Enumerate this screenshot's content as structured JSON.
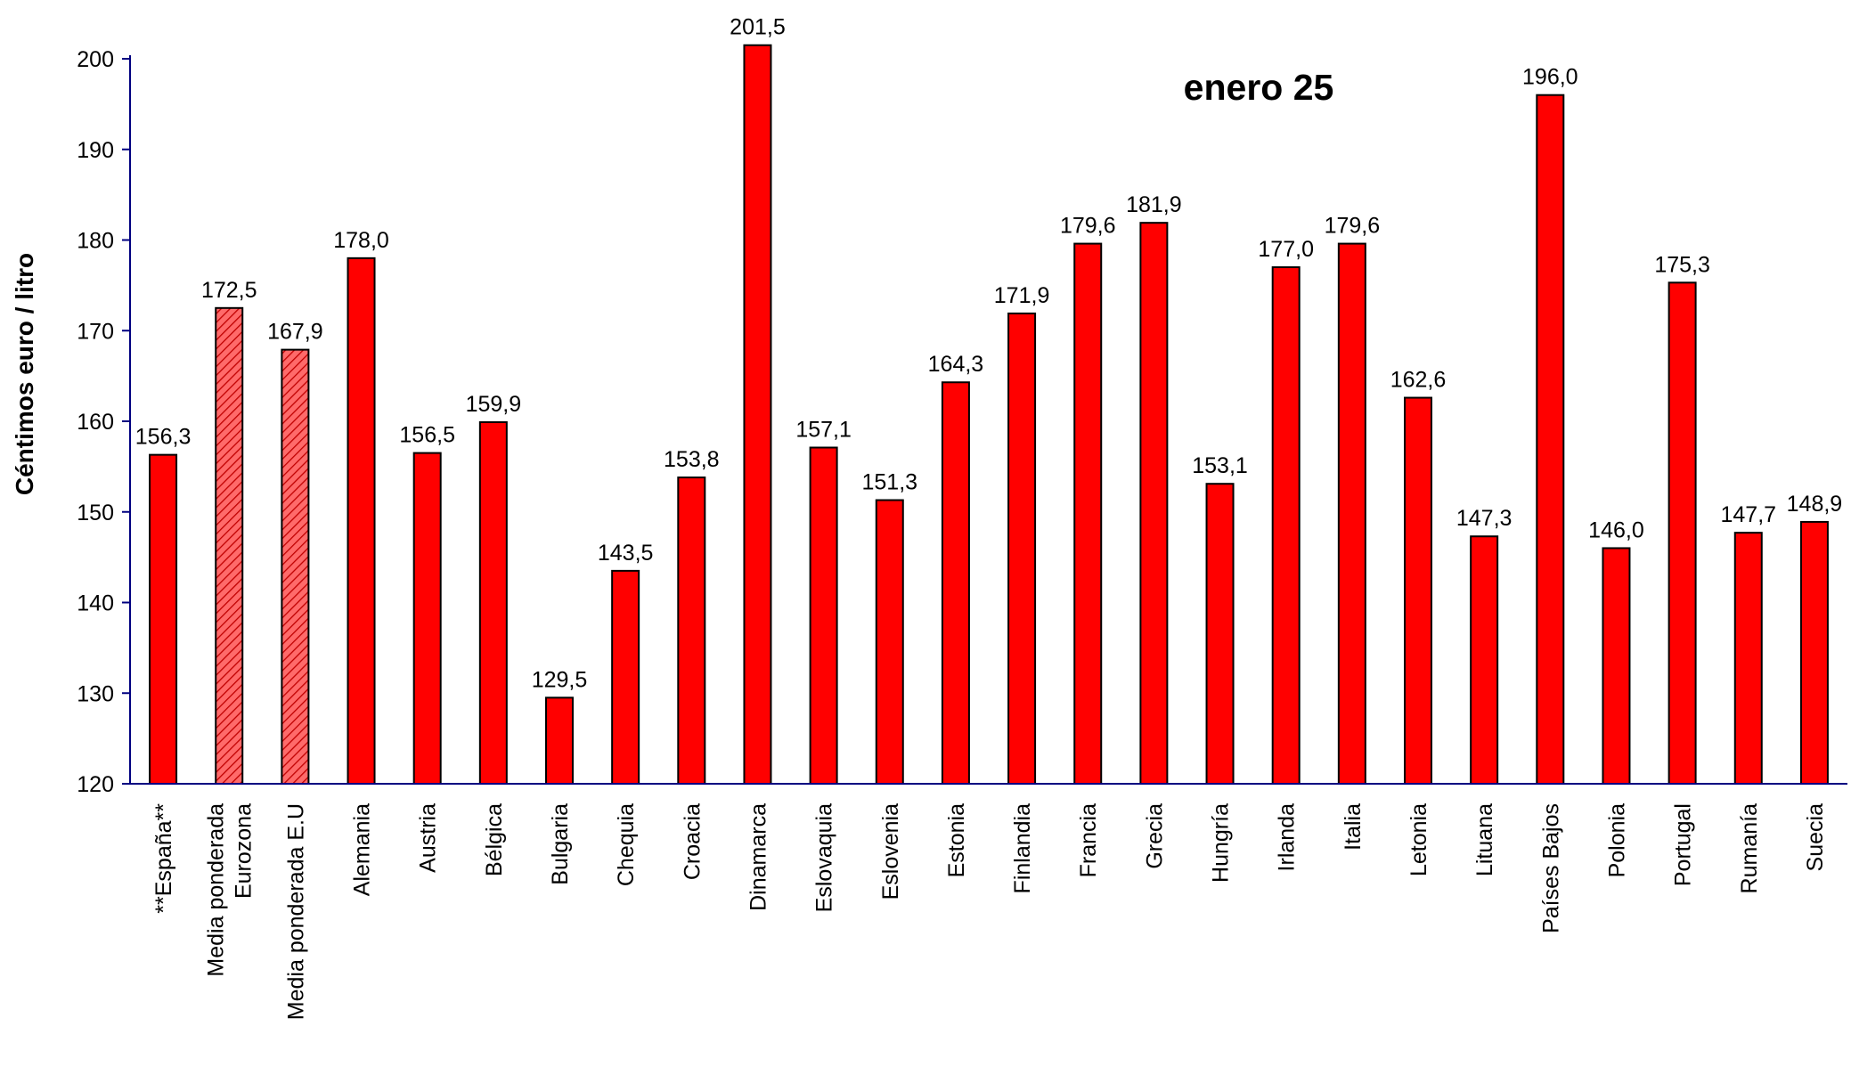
{
  "chart_data": {
    "type": "bar",
    "title": "enero 25",
    "ylabel": "Céntimos euro / litro",
    "xlabel": "",
    "ylim": [
      120,
      200
    ],
    "yticks": [
      120,
      130,
      140,
      150,
      160,
      170,
      180,
      190,
      200
    ],
    "grid": false,
    "legend": "none",
    "colors": {
      "bar_fill": "#ff0000",
      "bar_stroke": "#000000",
      "hatched_fill": "#ff6a6a",
      "hatch_line": "#c00000",
      "axis": "#000080"
    },
    "bars": [
      {
        "category": [
          "**España**"
        ],
        "value": 156.3,
        "label": "156,3",
        "style": "solid"
      },
      {
        "category": [
          "Media ponderada",
          "Eurozona"
        ],
        "value": 172.5,
        "label": "172,5",
        "style": "hatched"
      },
      {
        "category": [
          "Media ponderada E.U"
        ],
        "value": 167.9,
        "label": "167,9",
        "style": "hatched"
      },
      {
        "category": [
          "Alemania"
        ],
        "value": 178.0,
        "label": "178,0",
        "style": "solid"
      },
      {
        "category": [
          "Austria"
        ],
        "value": 156.5,
        "label": "156,5",
        "style": "solid"
      },
      {
        "category": [
          "Bélgica"
        ],
        "value": 159.9,
        "label": "159,9",
        "style": "solid"
      },
      {
        "category": [
          "Bulgaria"
        ],
        "value": 129.5,
        "label": "129,5",
        "style": "solid"
      },
      {
        "category": [
          "Chequia"
        ],
        "value": 143.5,
        "label": "143,5",
        "style": "solid"
      },
      {
        "category": [
          "Croacia"
        ],
        "value": 153.8,
        "label": "153,8",
        "style": "solid"
      },
      {
        "category": [
          "Dinamarca"
        ],
        "value": 201.5,
        "label": "201,5",
        "style": "solid"
      },
      {
        "category": [
          "Eslovaquia"
        ],
        "value": 157.1,
        "label": "157,1",
        "style": "solid"
      },
      {
        "category": [
          "Eslovenia"
        ],
        "value": 151.3,
        "label": "151,3",
        "style": "solid"
      },
      {
        "category": [
          "Estonia"
        ],
        "value": 164.3,
        "label": "164,3",
        "style": "solid"
      },
      {
        "category": [
          "Finlandia"
        ],
        "value": 171.9,
        "label": "171,9",
        "style": "solid"
      },
      {
        "category": [
          "Francia"
        ],
        "value": 179.6,
        "label": "179,6",
        "style": "solid"
      },
      {
        "category": [
          "Grecia"
        ],
        "value": 181.9,
        "label": "181,9",
        "style": "solid"
      },
      {
        "category": [
          "Hungría"
        ],
        "value": 153.1,
        "label": "153,1",
        "style": "solid"
      },
      {
        "category": [
          "Irlanda"
        ],
        "value": 177.0,
        "label": "177,0",
        "style": "solid"
      },
      {
        "category": [
          "Italia"
        ],
        "value": 179.6,
        "label": "179,6",
        "style": "solid"
      },
      {
        "category": [
          "Letonia"
        ],
        "value": 162.6,
        "label": "162,6",
        "style": "solid"
      },
      {
        "category": [
          "Lituana"
        ],
        "value": 147.3,
        "label": "147,3",
        "style": "solid"
      },
      {
        "category": [
          "Países Bajos"
        ],
        "value": 196.0,
        "label": "196,0",
        "style": "solid"
      },
      {
        "category": [
          "Polonia"
        ],
        "value": 146.0,
        "label": "146,0",
        "style": "solid"
      },
      {
        "category": [
          "Portugal"
        ],
        "value": 175.3,
        "label": "175,3",
        "style": "solid"
      },
      {
        "category": [
          "Rumanía"
        ],
        "value": 147.7,
        "label": "147,7",
        "style": "solid"
      },
      {
        "category": [
          "Suecia"
        ],
        "value": 148.9,
        "label": "148,9",
        "style": "solid"
      }
    ]
  }
}
